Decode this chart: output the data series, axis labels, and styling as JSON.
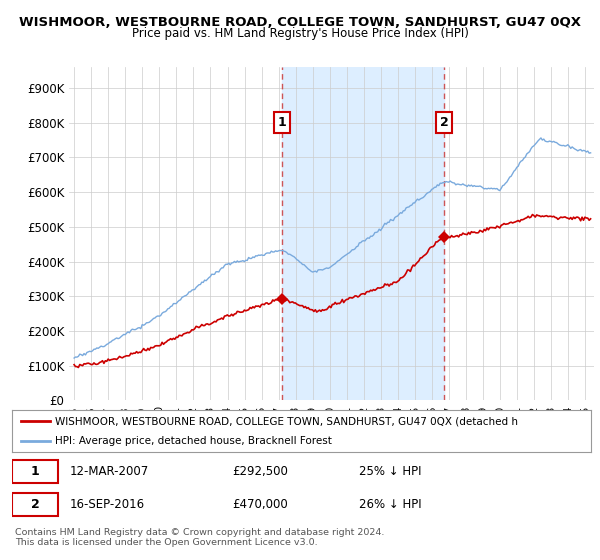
{
  "title": "WISHMOOR, WESTBOURNE ROAD, COLLEGE TOWN, SANDHURST, GU47 0QX",
  "subtitle": "Price paid vs. HM Land Registry's House Price Index (HPI)",
  "ylabel_ticks": [
    "£0",
    "£100K",
    "£200K",
    "£300K",
    "£400K",
    "£500K",
    "£600K",
    "£700K",
    "£800K",
    "£900K"
  ],
  "ytick_values": [
    0,
    100000,
    200000,
    300000,
    400000,
    500000,
    600000,
    700000,
    800000,
    900000
  ],
  "ylim": [
    0,
    960000
  ],
  "xlim_start": 1994.7,
  "xlim_end": 2025.5,
  "red_line_color": "#cc0000",
  "blue_line_color": "#7aaadd",
  "sale1_x": 2007.19,
  "sale1_y": 292500,
  "sale2_x": 2016.71,
  "sale2_y": 470000,
  "dashed_line_color": "#cc4444",
  "legend_red_label": "WISHMOOR, WESTBOURNE ROAD, COLLEGE TOWN, SANDHURST, GU47 0QX (detached h",
  "legend_blue_label": "HPI: Average price, detached house, Bracknell Forest",
  "footnote": "Contains HM Land Registry data © Crown copyright and database right 2024.\nThis data is licensed under the Open Government Licence v3.0.",
  "background_color": "#ffffff",
  "plot_bg_color": "#ffffff",
  "shaded_color": "#ddeeff"
}
